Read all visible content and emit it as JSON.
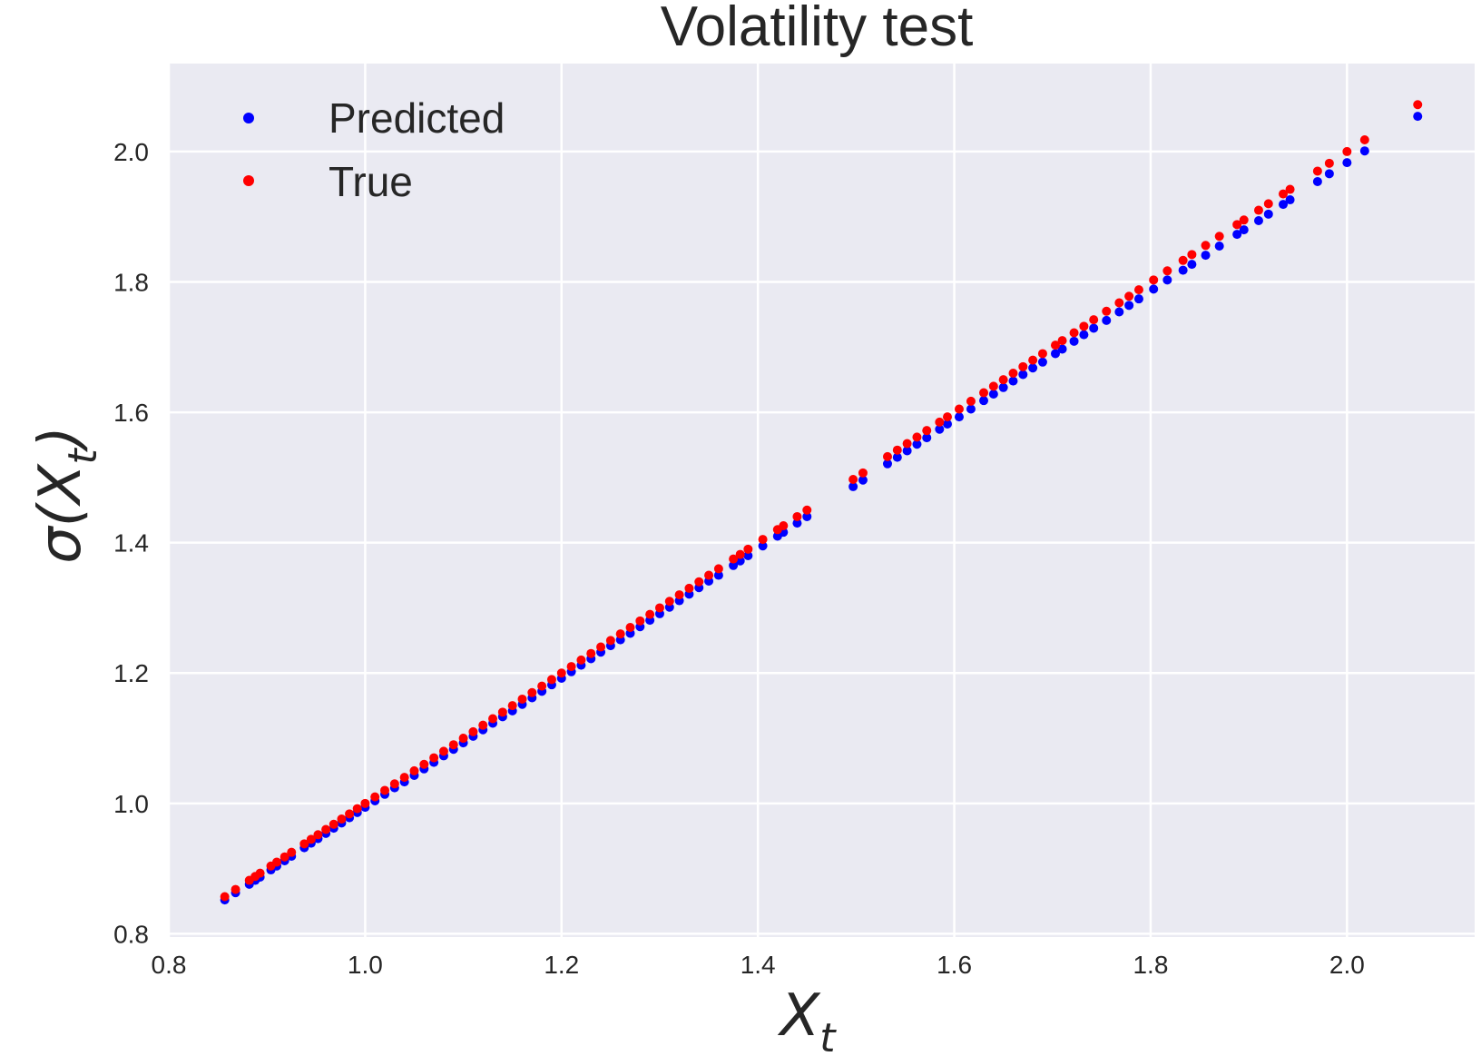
{
  "chart_data": {
    "type": "scatter",
    "title": "Volatility test",
    "xlabel": "X",
    "xlabel_subscript": "t",
    "ylabel_prefix": "σ(X",
    "ylabel_subscript": "t",
    "ylabel_suffix": ")",
    "xlim": [
      0.8,
      2.13
    ],
    "ylim": [
      0.795,
      2.135
    ],
    "xticks": [
      0.8,
      1.0,
      1.2,
      1.4,
      1.6,
      1.8,
      2.0
    ],
    "yticks": [
      0.8,
      1.0,
      1.2,
      1.4,
      1.6,
      1.8,
      2.0
    ],
    "xtick_labels": [
      "0.8",
      "1.0",
      "1.2",
      "1.4",
      "1.6",
      "1.8",
      "2.0"
    ],
    "ytick_labels": [
      "0.8",
      "1.0",
      "1.2",
      "1.4",
      "1.6",
      "1.8",
      "2.0"
    ],
    "grid": true,
    "legend_position": "top-left",
    "background_color": "#EAEAF2",
    "grid_color": "#FFFFFF",
    "series": [
      {
        "name": "Predicted",
        "color": "#0000FF",
        "x": [
          0.857,
          0.868,
          0.882,
          0.888,
          0.893,
          0.904,
          0.91,
          0.918,
          0.925,
          0.938,
          0.945,
          0.952,
          0.96,
          0.968,
          0.976,
          0.984,
          0.992,
          1.0,
          1.01,
          1.02,
          1.03,
          1.04,
          1.05,
          1.06,
          1.07,
          1.08,
          1.09,
          1.1,
          1.11,
          1.12,
          1.13,
          1.14,
          1.15,
          1.16,
          1.17,
          1.18,
          1.19,
          1.2,
          1.21,
          1.22,
          1.23,
          1.24,
          1.25,
          1.26,
          1.27,
          1.28,
          1.29,
          1.3,
          1.31,
          1.32,
          1.33,
          1.34,
          1.35,
          1.36,
          1.375,
          1.382,
          1.39,
          1.405,
          1.42,
          1.426,
          1.44,
          1.45,
          1.497,
          1.507,
          1.532,
          1.542,
          1.552,
          1.562,
          1.572,
          1.585,
          1.593,
          1.605,
          1.617,
          1.63,
          1.64,
          1.65,
          1.66,
          1.67,
          1.68,
          1.69,
          1.703,
          1.71,
          1.722,
          1.732,
          1.742,
          1.755,
          1.768,
          1.778,
          1.788,
          1.803,
          1.817,
          1.833,
          1.842,
          1.856,
          1.87,
          1.888,
          1.895,
          1.91,
          1.92,
          1.935,
          1.942,
          1.97,
          1.982,
          2.0,
          2.018,
          2.072
        ],
        "y": [
          0.852,
          0.863,
          0.876,
          0.882,
          0.887,
          0.898,
          0.904,
          0.912,
          0.919,
          0.932,
          0.939,
          0.946,
          0.954,
          0.962,
          0.97,
          0.978,
          0.986,
          0.994,
          1.004,
          1.014,
          1.024,
          1.033,
          1.043,
          1.053,
          1.063,
          1.073,
          1.083,
          1.093,
          1.103,
          1.113,
          1.123,
          1.133,
          1.142,
          1.152,
          1.162,
          1.172,
          1.182,
          1.192,
          1.202,
          1.212,
          1.222,
          1.232,
          1.242,
          1.251,
          1.261,
          1.271,
          1.281,
          1.291,
          1.301,
          1.311,
          1.321,
          1.331,
          1.341,
          1.35,
          1.365,
          1.372,
          1.38,
          1.395,
          1.41,
          1.416,
          1.43,
          1.44,
          1.486,
          1.496,
          1.521,
          1.531,
          1.541,
          1.551,
          1.561,
          1.574,
          1.582,
          1.593,
          1.605,
          1.618,
          1.628,
          1.638,
          1.648,
          1.658,
          1.668,
          1.677,
          1.69,
          1.697,
          1.709,
          1.719,
          1.729,
          1.741,
          1.754,
          1.764,
          1.774,
          1.789,
          1.803,
          1.818,
          1.827,
          1.841,
          1.855,
          1.873,
          1.88,
          1.894,
          1.904,
          1.919,
          1.926,
          1.954,
          1.966,
          1.983,
          2.001,
          2.054
        ],
        "marker_size": 5
      },
      {
        "name": "True",
        "color": "#FF0000",
        "x": [
          0.857,
          0.868,
          0.882,
          0.888,
          0.893,
          0.904,
          0.91,
          0.918,
          0.925,
          0.938,
          0.945,
          0.952,
          0.96,
          0.968,
          0.976,
          0.984,
          0.992,
          1.0,
          1.01,
          1.02,
          1.03,
          1.04,
          1.05,
          1.06,
          1.07,
          1.08,
          1.09,
          1.1,
          1.11,
          1.12,
          1.13,
          1.14,
          1.15,
          1.16,
          1.17,
          1.18,
          1.19,
          1.2,
          1.21,
          1.22,
          1.23,
          1.24,
          1.25,
          1.26,
          1.27,
          1.28,
          1.29,
          1.3,
          1.31,
          1.32,
          1.33,
          1.34,
          1.35,
          1.36,
          1.375,
          1.382,
          1.39,
          1.405,
          1.42,
          1.426,
          1.44,
          1.45,
          1.497,
          1.507,
          1.532,
          1.542,
          1.552,
          1.562,
          1.572,
          1.585,
          1.593,
          1.605,
          1.617,
          1.63,
          1.64,
          1.65,
          1.66,
          1.67,
          1.68,
          1.69,
          1.703,
          1.71,
          1.722,
          1.732,
          1.742,
          1.755,
          1.768,
          1.778,
          1.788,
          1.803,
          1.817,
          1.833,
          1.842,
          1.856,
          1.87,
          1.888,
          1.895,
          1.91,
          1.92,
          1.935,
          1.942,
          1.97,
          1.982,
          2.0,
          2.018,
          2.072
        ],
        "y": [
          0.857,
          0.868,
          0.882,
          0.888,
          0.893,
          0.904,
          0.91,
          0.918,
          0.925,
          0.938,
          0.945,
          0.952,
          0.96,
          0.968,
          0.976,
          0.984,
          0.992,
          1.0,
          1.01,
          1.02,
          1.03,
          1.04,
          1.05,
          1.06,
          1.07,
          1.08,
          1.09,
          1.1,
          1.11,
          1.12,
          1.13,
          1.14,
          1.15,
          1.16,
          1.17,
          1.18,
          1.19,
          1.2,
          1.21,
          1.22,
          1.23,
          1.24,
          1.25,
          1.26,
          1.27,
          1.28,
          1.29,
          1.3,
          1.31,
          1.32,
          1.33,
          1.34,
          1.35,
          1.36,
          1.375,
          1.382,
          1.39,
          1.405,
          1.42,
          1.426,
          1.44,
          1.45,
          1.497,
          1.507,
          1.532,
          1.542,
          1.552,
          1.562,
          1.572,
          1.585,
          1.593,
          1.605,
          1.617,
          1.63,
          1.64,
          1.65,
          1.66,
          1.67,
          1.68,
          1.69,
          1.703,
          1.71,
          1.722,
          1.732,
          1.742,
          1.755,
          1.768,
          1.778,
          1.788,
          1.803,
          1.817,
          1.833,
          1.842,
          1.856,
          1.87,
          1.888,
          1.895,
          1.91,
          1.92,
          1.935,
          1.942,
          1.97,
          1.982,
          2.0,
          2.018,
          2.072
        ],
        "marker_size": 5
      }
    ]
  }
}
